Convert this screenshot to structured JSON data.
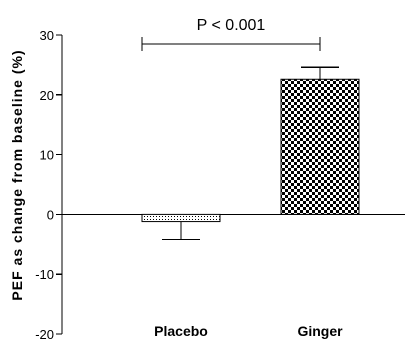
{
  "chart_data": {
    "type": "bar",
    "title": "",
    "xlabel": "",
    "ylabel": "PEF as change from baseline (%)",
    "categories": [
      "Placebo",
      "Ginger"
    ],
    "values": [
      -1.2,
      22.6
    ],
    "error_bars": [
      {
        "direction": "down",
        "value": 3.0
      },
      {
        "direction": "up",
        "value": 2.0
      }
    ],
    "ylim": [
      -20,
      30
    ],
    "y_ticks": [
      {
        "value": -20,
        "label": "-20"
      },
      {
        "value": -10,
        "label": "-10"
      },
      {
        "value": 0,
        "label": "0"
      },
      {
        "value": 10,
        "label": "10"
      },
      {
        "value": 20,
        "label": "20"
      },
      {
        "value": 30,
        "label": "30"
      }
    ],
    "annotation": {
      "text": "P < 0.001",
      "from": "Placebo",
      "to": "Ginger"
    },
    "grid": false,
    "legend": "none",
    "colors": {
      "axis": "#000000",
      "pattern_fg": "#000000",
      "pattern_bg": "#ffffff"
    }
  }
}
